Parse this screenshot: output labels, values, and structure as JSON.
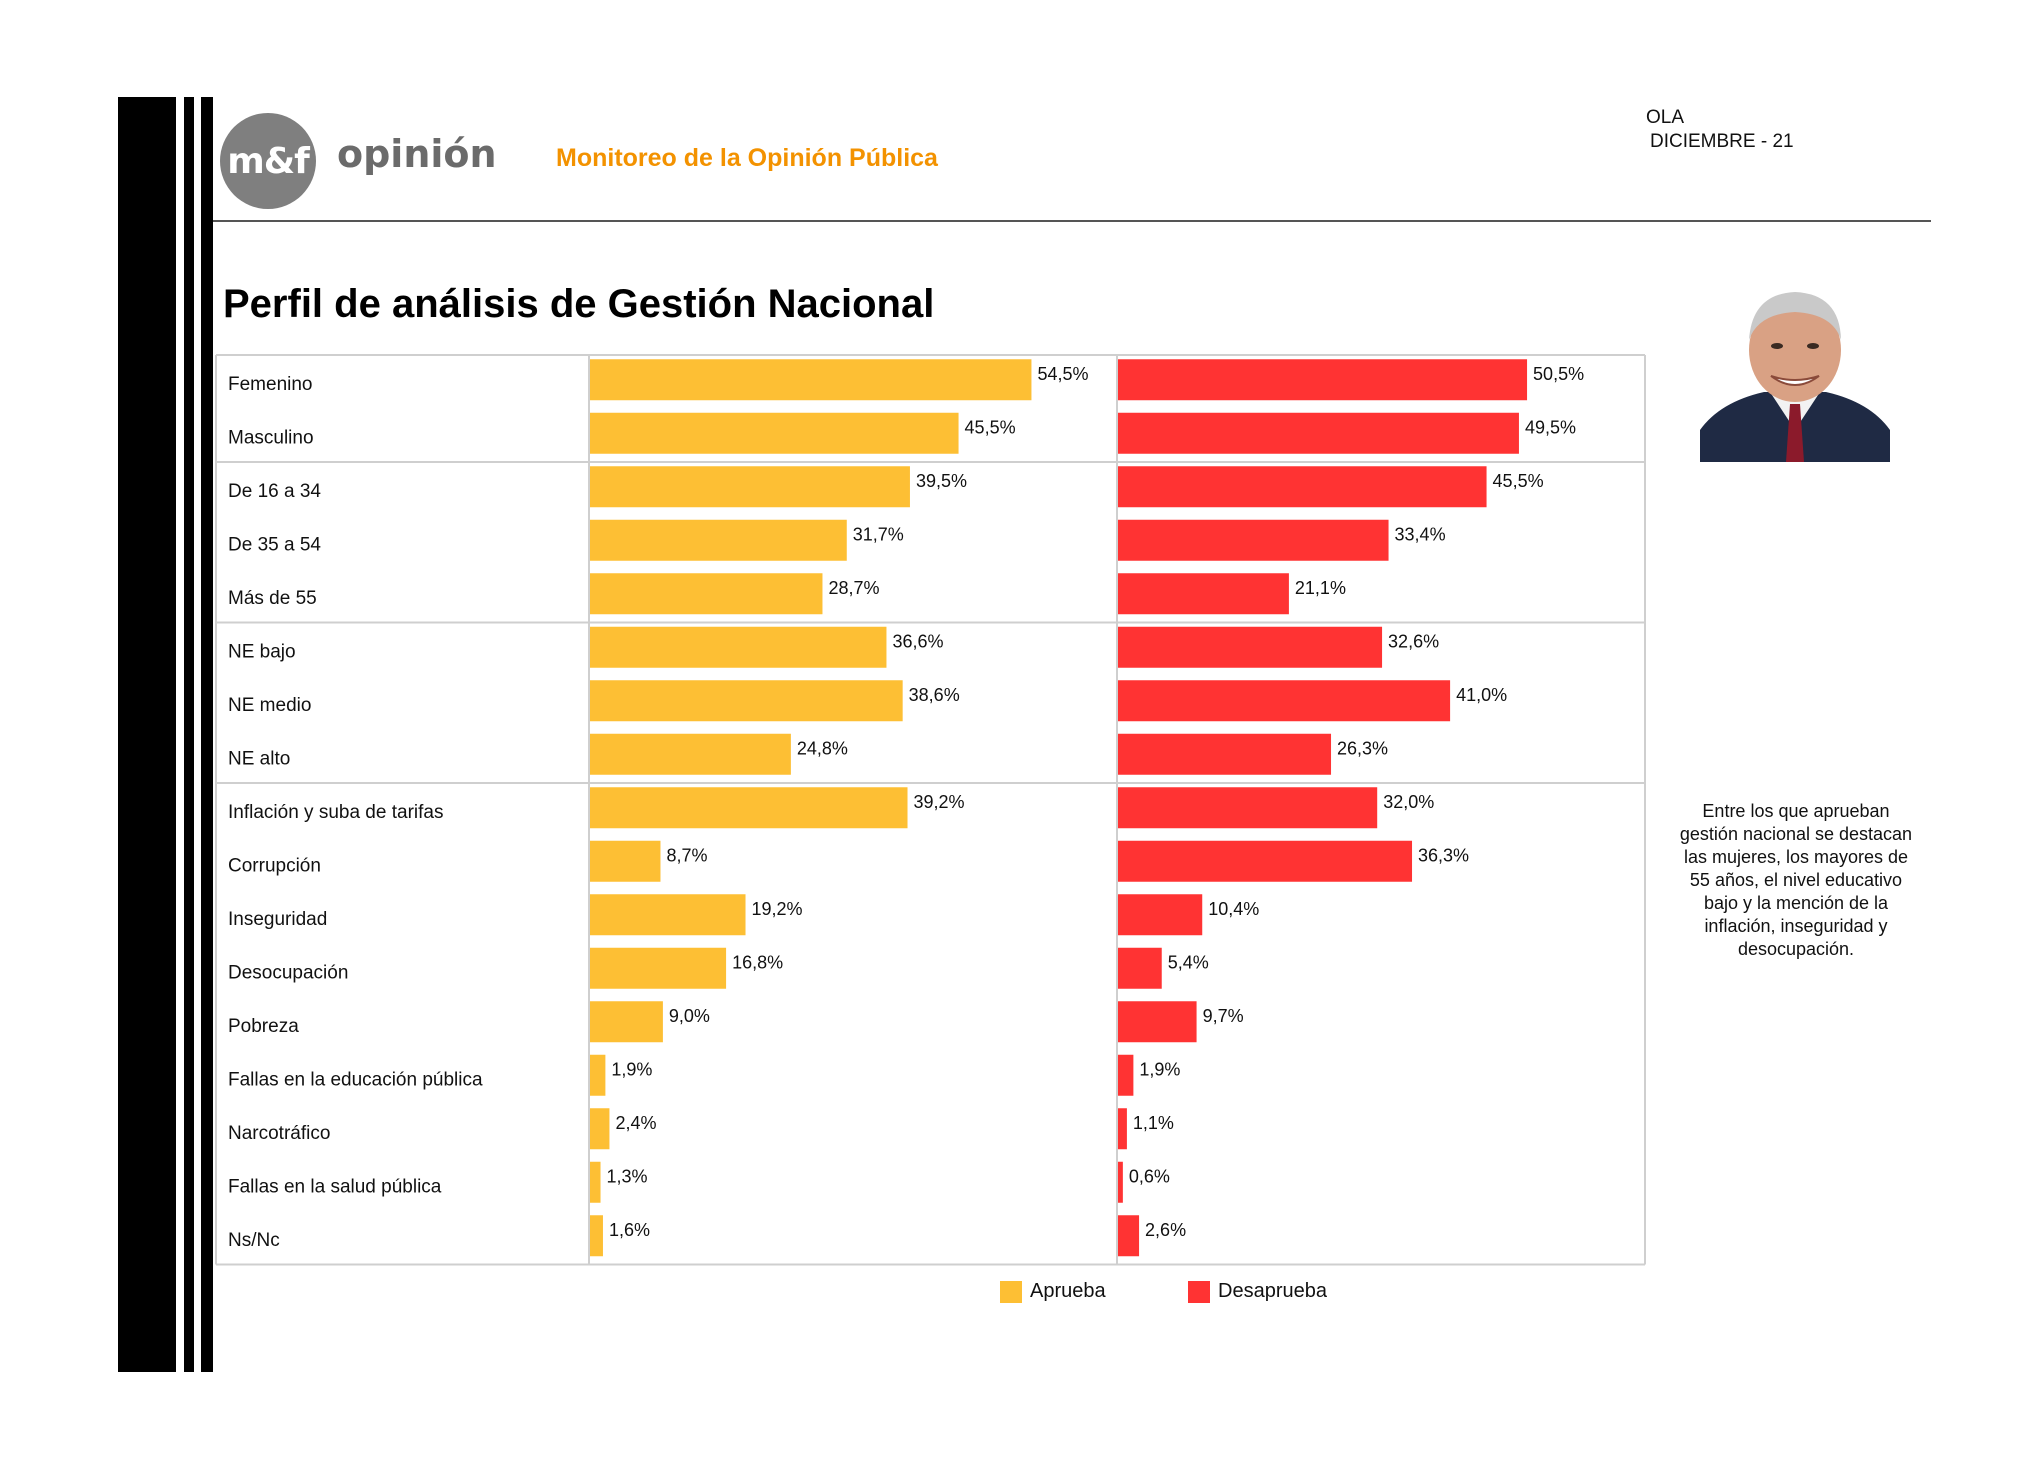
{
  "header": {
    "logo_mark": "m&f",
    "logo_word": "opinión",
    "subtitle": "Monitoreo de la Opinión Pública",
    "wave_line1": "OLA",
    "wave_line2": "DICIEMBRE - 21"
  },
  "note": "Entre los que aprueban gestión nacional se destacan las mujeres, los mayores de 55 años, el nivel educativo bajo y la mención de la inflación, inseguridad y desocupación.",
  "colors": {
    "approve": "#fdbf34",
    "disapprove": "#ff3333",
    "grid": "#cfcfcf"
  },
  "chart_data": {
    "type": "bar",
    "orientation": "horizontal",
    "title": "Perfil de análisis de Gestión Nacional",
    "categories": [
      "Femenino",
      "Masculino",
      "De 16 a 34",
      "De 35 a 54",
      "Más de 55",
      "NE bajo",
      "NE medio",
      "NE alto",
      "Inflación y suba de tarifas",
      "Corrupción",
      "Inseguridad",
      "Desocupación",
      "Pobreza",
      "Fallas en la educación pública",
      "Narcotráfico",
      "Fallas en la salud pública",
      "Ns/Nc"
    ],
    "groups": [
      2,
      3,
      3,
      9
    ],
    "series": [
      {
        "name": "Aprueba",
        "color": "#fdbf34",
        "values": [
          54.5,
          45.5,
          39.5,
          31.7,
          28.7,
          36.6,
          38.6,
          24.8,
          39.2,
          8.7,
          19.2,
          16.8,
          9.0,
          1.9,
          2.4,
          1.3,
          1.6
        ],
        "labels": [
          "54,5%",
          "45,5%",
          "39,5%",
          "31,7%",
          "28,7%",
          "36,6%",
          "38,6%",
          "24,8%",
          "39,2%",
          "8,7%",
          "19,2%",
          "16,8%",
          "9,0%",
          "1,9%",
          "2,4%",
          "1,3%",
          "1,6%"
        ]
      },
      {
        "name": "Desaprueba",
        "color": "#ff3333",
        "values": [
          50.5,
          49.5,
          45.5,
          33.4,
          21.1,
          32.6,
          41.0,
          26.3,
          32.0,
          36.3,
          10.4,
          5.4,
          9.7,
          1.9,
          1.1,
          0.6,
          2.6
        ],
        "labels": [
          "50,5%",
          "49,5%",
          "45,5%",
          "33,4%",
          "21,1%",
          "32,6%",
          "41,0%",
          "26,3%",
          "32,0%",
          "36,3%",
          "10,4%",
          "5,4%",
          "9,7%",
          "1,9%",
          "1,1%",
          "0,6%",
          "2,6%"
        ]
      }
    ],
    "legend": "bottom-center",
    "grid": false
  }
}
